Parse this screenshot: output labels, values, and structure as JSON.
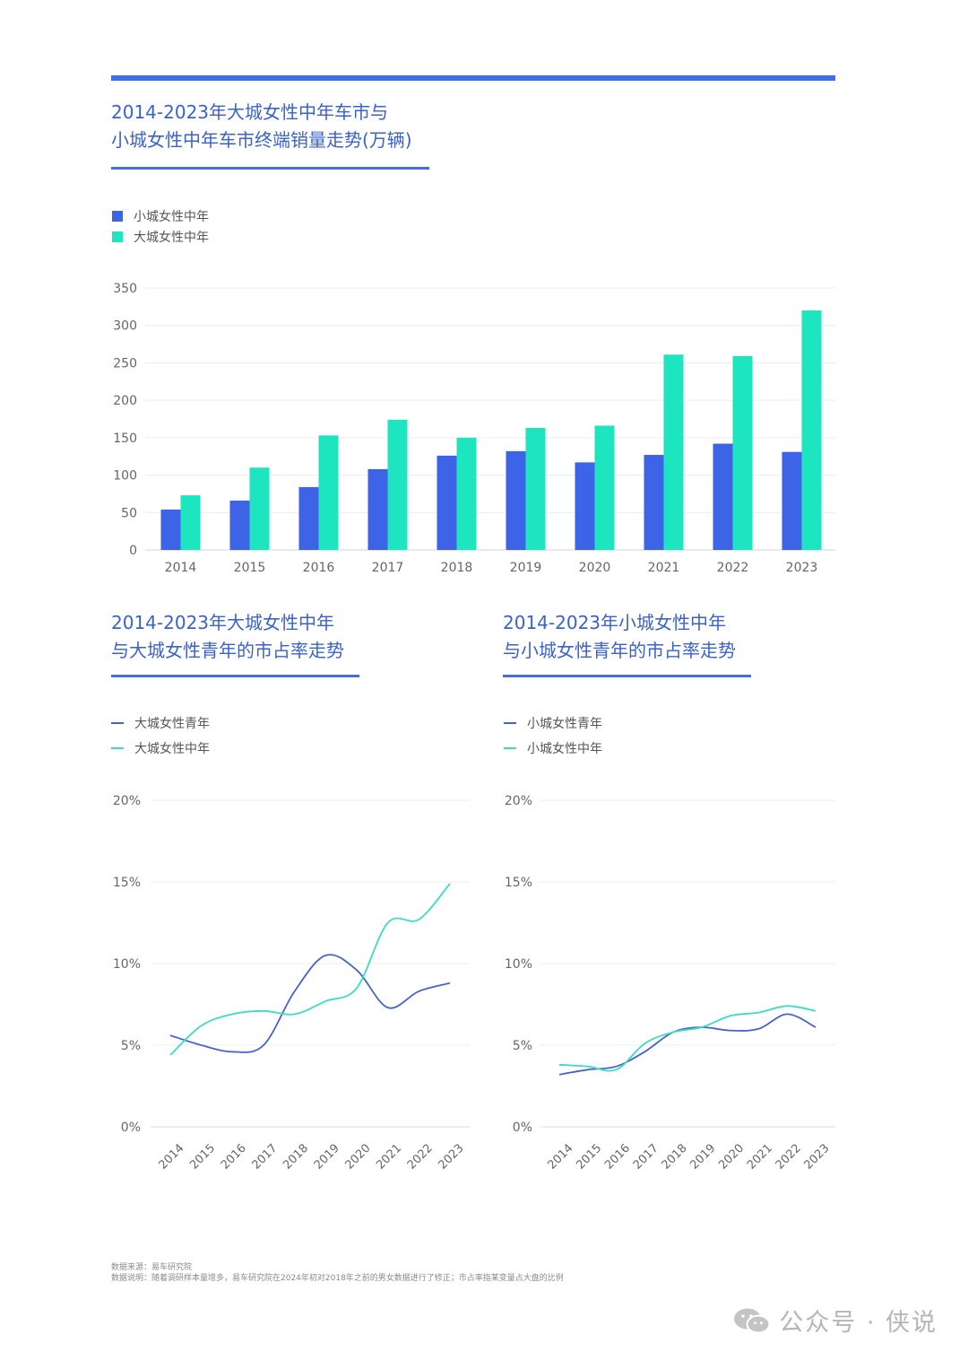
{
  "colors": {
    "accent": "#3f6fe0",
    "title": "#3b62c9",
    "small_city_middle": "#3d63e6",
    "big_city_middle": "#1de5c0",
    "youth_line": "#4763c6",
    "middle_line": "#3ddbc2"
  },
  "bar_chart": {
    "title_line1": "2014-2023年大城女性中年车市与",
    "title_line2": "小城女性中年车市终端销量走势(万辆)"
  },
  "left_chart": {
    "title_line1": "2014-2023年大城女性中年",
    "title_line2": "与大城女性青年的市占率走势"
  },
  "right_chart": {
    "title_line1": "2014-2023年小城女性中年",
    "title_line2": "与小城女性青年的市占率走势"
  },
  "chart_data": [
    {
      "type": "bar",
      "title": "2014-2023年大城女性中年车市与小城女性中年车市终端销量走势(万辆)",
      "categories": [
        "2014",
        "2015",
        "2016",
        "2017",
        "2018",
        "2019",
        "2020",
        "2021",
        "2022",
        "2023"
      ],
      "series": [
        {
          "name": "小城女性中年",
          "values": [
            54,
            66,
            84,
            108,
            126,
            132,
            117,
            127,
            142,
            131
          ]
        },
        {
          "name": "大城女性中年",
          "values": [
            73,
            110,
            153,
            174,
            150,
            163,
            166,
            261,
            259,
            320
          ]
        }
      ],
      "ylim": [
        0,
        350
      ],
      "yticks": [
        "0",
        "50",
        "100",
        "150",
        "200",
        "250",
        "300",
        "350"
      ],
      "grid": true,
      "legend": "top-left"
    },
    {
      "type": "line",
      "title": "2014-2023年大城女性中年与大城女性青年的市占率走势",
      "x": [
        "2014",
        "2015",
        "2016",
        "2017",
        "2018",
        "2019",
        "2020",
        "2021",
        "2022",
        "2023"
      ],
      "series": [
        {
          "name": "大城女性青年",
          "values": [
            5.6,
            5.0,
            4.6,
            5.0,
            8.3,
            10.5,
            9.6,
            7.3,
            8.3,
            8.8
          ]
        },
        {
          "name": "大城女性中年",
          "values": [
            4.4,
            6.2,
            6.9,
            7.1,
            6.9,
            7.7,
            8.5,
            12.5,
            12.7,
            14.9
          ]
        }
      ],
      "ylim": [
        0,
        20
      ],
      "yticks": [
        "0%",
        "5%",
        "10%",
        "15%",
        "20%"
      ],
      "grid": true,
      "legend": "top-left"
    },
    {
      "type": "line",
      "title": "2014-2023年小城女性中年与小城女性青年的市占率走势",
      "x": [
        "2014",
        "2015",
        "2016",
        "2017",
        "2018",
        "2019",
        "2020",
        "2021",
        "2022",
        "2023"
      ],
      "series": [
        {
          "name": "小城女性青年",
          "values": [
            3.2,
            3.5,
            3.7,
            4.6,
            5.8,
            6.1,
            5.9,
            6.0,
            6.9,
            6.1
          ]
        },
        {
          "name": "小城女性中年",
          "values": [
            3.8,
            3.7,
            3.5,
            5.1,
            5.8,
            6.1,
            6.8,
            7.0,
            7.4,
            7.1
          ]
        }
      ],
      "ylim": [
        0,
        20
      ],
      "yticks": [
        "0%",
        "5%",
        "10%",
        "15%",
        "20%"
      ],
      "grid": true,
      "legend": "top-left"
    }
  ],
  "footnote": {
    "source": "数据来源：易车研究院",
    "note": "数据说明：随着调研样本量增多，易车研究院在2024年初对2018年之前的男女数据进行了修正；市占率指某变量占大盘的比例"
  },
  "watermark": {
    "text": "公众号 · 侠说",
    "icon": "wechat-icon"
  }
}
